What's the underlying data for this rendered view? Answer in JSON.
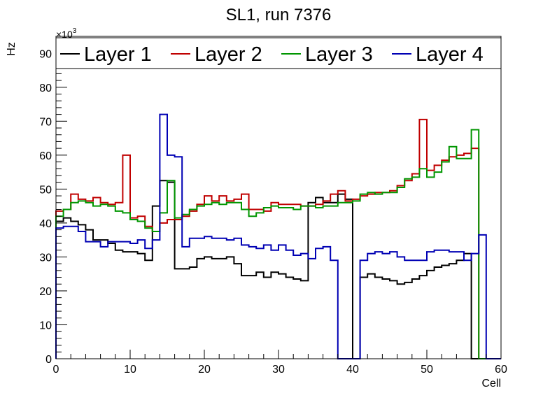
{
  "chart_data": {
    "type": "line",
    "title": "SL1, run 7376",
    "xlabel": "Cell",
    "ylabel": "Hz",
    "y_multiplier": "×10",
    "y_multiplier_exponent": "3",
    "xlim": [
      0,
      60
    ],
    "ylim": [
      0,
      95
    ],
    "xticks": [
      0,
      10,
      20,
      30,
      40,
      50,
      60
    ],
    "yticks": [
      0,
      10,
      20,
      30,
      40,
      50,
      60,
      70,
      80,
      90
    ],
    "grid": false,
    "legend_position": "top",
    "bin_edges_start": 0,
    "bin_width": 1,
    "series": [
      {
        "name": "Layer 1",
        "color": "#000000",
        "values": [
          40.5,
          41.5,
          40.5,
          39.5,
          38,
          35,
          35,
          34,
          32,
          31.5,
          31.5,
          31,
          29,
          45,
          52.5,
          52,
          26.5,
          26.5,
          27,
          29.5,
          30,
          29.5,
          29.5,
          30,
          28,
          24.5,
          24.5,
          25.5,
          24,
          25.5,
          25,
          24,
          23.5,
          23,
          46,
          47.5,
          46,
          46,
          48.5,
          47,
          0,
          24,
          25,
          24,
          23.5,
          23,
          22,
          22.5,
          23.5,
          24.5,
          26,
          27,
          27.5,
          28,
          29,
          31,
          0,
          0,
          0,
          0
        ]
      },
      {
        "name": "Layer 2",
        "color": "#c00000",
        "values": [
          43.5,
          44,
          48.5,
          47,
          46.5,
          47.5,
          46,
          45.5,
          46,
          60,
          41.5,
          42,
          39,
          37.5,
          40,
          41,
          41,
          42,
          43.5,
          45.5,
          48,
          46.5,
          48,
          46.5,
          47,
          48.5,
          44,
          44,
          43.5,
          46,
          45.5,
          45.5,
          45.5,
          45,
          45,
          45.5,
          46.5,
          48.5,
          49.5,
          46.5,
          47,
          48,
          48.5,
          49,
          49,
          49.5,
          51,
          52.5,
          54.5,
          70.5,
          55.5,
          57,
          58.5,
          59.5,
          60,
          60.5,
          62,
          0,
          0,
          0
        ]
      },
      {
        "name": "Layer 3",
        "color": "#009600",
        "values": [
          42,
          44,
          46,
          46.5,
          46,
          45,
          45.5,
          45,
          43.5,
          43,
          41,
          40.5,
          38.5,
          37.5,
          43,
          52.5,
          41.5,
          42.5,
          44,
          45,
          45.5,
          46,
          45.5,
          46,
          46,
          44,
          42,
          43,
          44.5,
          45,
          44.5,
          44.5,
          44,
          45,
          45,
          44.5,
          45,
          45,
          46,
          46,
          46.5,
          48.5,
          49,
          48.5,
          49,
          49,
          50.5,
          53,
          53.5,
          56,
          53.5,
          55,
          58,
          62.5,
          59,
          59,
          67.5,
          0,
          0,
          0
        ]
      },
      {
        "name": "Layer 4",
        "color": "#0000b4",
        "values": [
          38.5,
          39,
          39,
          37.5,
          34.5,
          34.5,
          33,
          34.5,
          34.5,
          34.5,
          34,
          35,
          32.5,
          35,
          72,
          60,
          59.5,
          33,
          35.5,
          35.5,
          36,
          35.5,
          35.5,
          35,
          35.5,
          33.5,
          33,
          32.5,
          33.5,
          32,
          33.5,
          32,
          30.5,
          31,
          29.5,
          32.5,
          33,
          29,
          0,
          0,
          0,
          29,
          31,
          31.5,
          31,
          31.5,
          30,
          29,
          29,
          29,
          31.5,
          32,
          32,
          31.5,
          31.5,
          29,
          31,
          36.5,
          0,
          0
        ]
      }
    ]
  }
}
